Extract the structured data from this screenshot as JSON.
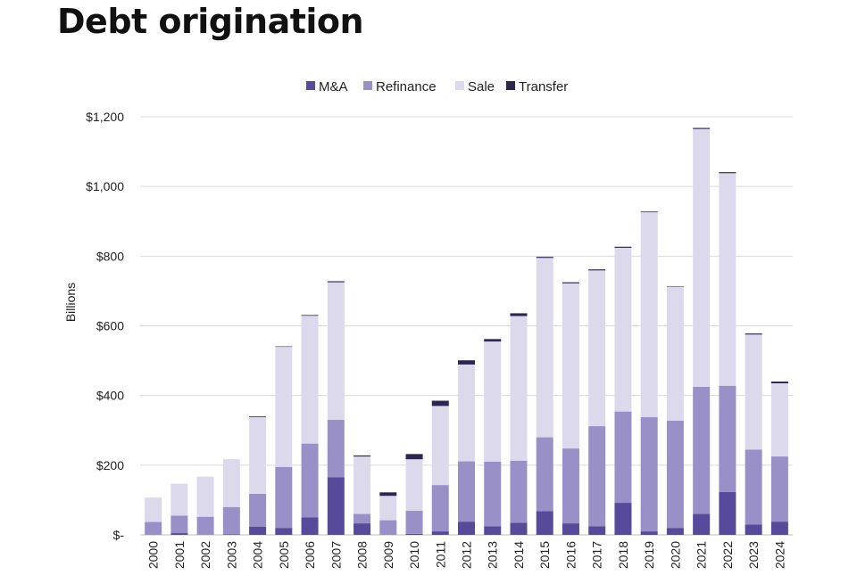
{
  "chart_data": {
    "type": "bar",
    "stacked": true,
    "title": "Debt origination",
    "ylabel": "Billions",
    "xlabel": "",
    "ylim": [
      0,
      1200
    ],
    "yticks": [
      0,
      200,
      400,
      600,
      800,
      1000,
      1200
    ],
    "ytick_labels": [
      "$-",
      "$200",
      "$400",
      "$600",
      "$800",
      "$1,000",
      "$1,200"
    ],
    "grid": true,
    "legend_position": "top-center",
    "categories": [
      "2000",
      "2001",
      "2002",
      "2003",
      "2004",
      "2005",
      "2006",
      "2007",
      "2008",
      "2009",
      "2010",
      "2011",
      "2012",
      "2013",
      "2014",
      "2015",
      "2016",
      "2017",
      "2018",
      "2019",
      "2020",
      "2021",
      "2022",
      "2023",
      "2024"
    ],
    "series": [
      {
        "name": "M&A",
        "color": "#574a9a",
        "values": [
          0,
          5,
          0,
          2,
          23,
          20,
          50,
          165,
          33,
          0,
          3,
          10,
          38,
          25,
          35,
          68,
          33,
          25,
          92,
          10,
          20,
          60,
          123,
          30,
          38
        ]
      },
      {
        "name": "Refinance",
        "color": "#9990c7",
        "values": [
          37,
          50,
          52,
          78,
          95,
          175,
          212,
          165,
          27,
          42,
          66,
          133,
          173,
          185,
          178,
          212,
          215,
          287,
          262,
          328,
          308,
          365,
          305,
          215,
          187
        ]
      },
      {
        "name": "Sale",
        "color": "#dcd9ec",
        "values": [
          70,
          92,
          115,
          137,
          220,
          345,
          367,
          395,
          165,
          70,
          148,
          227,
          278,
          345,
          415,
          515,
          474,
          447,
          470,
          588,
          385,
          740,
          610,
          330,
          210
        ]
      },
      {
        "name": "Transfer",
        "color": "#2b2550",
        "values": [
          0,
          0,
          0,
          0,
          2,
          1,
          2,
          3,
          3,
          10,
          15,
          15,
          12,
          7,
          8,
          3,
          3,
          3,
          3,
          2,
          1,
          3,
          3,
          3,
          5
        ]
      }
    ]
  }
}
